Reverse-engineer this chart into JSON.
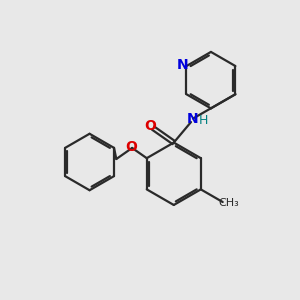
{
  "background_color": "#e8e8e8",
  "bond_color": "#2a2a2a",
  "N_color": "#0000dd",
  "O_color": "#dd0000",
  "NH_color": "#008080",
  "figsize": [
    3.0,
    3.0
  ],
  "dpi": 100,
  "xlim": [
    0,
    10
  ],
  "ylim": [
    0,
    10
  ]
}
